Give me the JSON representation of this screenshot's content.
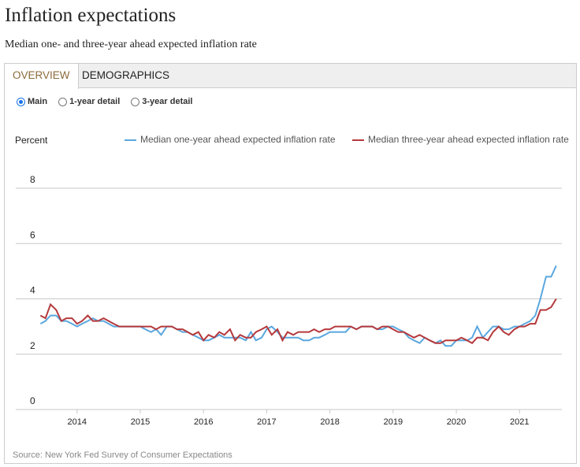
{
  "header": {
    "title": "Inflation expectations",
    "subtitle": "Median one- and three-year ahead expected inflation rate"
  },
  "tabs": [
    "OVERVIEW",
    "DEMOGRAPHICS"
  ],
  "options": [
    "Main",
    "1-year detail",
    "3-year detail"
  ],
  "chart_data": {
    "type": "line",
    "y_label": "Percent",
    "x": [
      2013.42,
      2013.5,
      2013.58,
      2013.67,
      2013.75,
      2013.83,
      2013.92,
      2014.0,
      2014.08,
      2014.17,
      2014.25,
      2014.33,
      2014.42,
      2014.5,
      2014.58,
      2014.67,
      2014.75,
      2014.83,
      2014.92,
      2015.0,
      2015.08,
      2015.17,
      2015.25,
      2015.33,
      2015.42,
      2015.5,
      2015.58,
      2015.67,
      2015.75,
      2015.83,
      2015.92,
      2016.0,
      2016.08,
      2016.17,
      2016.25,
      2016.33,
      2016.42,
      2016.5,
      2016.58,
      2016.67,
      2016.75,
      2016.83,
      2016.92,
      2017.0,
      2017.08,
      2017.17,
      2017.25,
      2017.33,
      2017.42,
      2017.5,
      2017.58,
      2017.67,
      2017.75,
      2017.83,
      2017.92,
      2018.0,
      2018.08,
      2018.17,
      2018.25,
      2018.33,
      2018.42,
      2018.5,
      2018.58,
      2018.67,
      2018.75,
      2018.83,
      2018.92,
      2019.0,
      2019.08,
      2019.17,
      2019.25,
      2019.33,
      2019.42,
      2019.5,
      2019.58,
      2019.67,
      2019.75,
      2019.83,
      2019.92,
      2020.0,
      2020.08,
      2020.17,
      2020.25,
      2020.33,
      2020.42,
      2020.5,
      2020.58,
      2020.67,
      2020.75,
      2020.83,
      2020.92,
      2021.0,
      2021.08,
      2021.17,
      2021.25,
      2021.33,
      2021.42,
      2021.5,
      2021.58
    ],
    "series": [
      {
        "name": "Median one-year ahead expected inflation rate",
        "color": "#5aa7de",
        "values": [
          3.1,
          3.2,
          3.4,
          3.4,
          3.2,
          3.2,
          3.1,
          3.0,
          3.1,
          3.2,
          3.3,
          3.2,
          3.2,
          3.1,
          3.0,
          3.0,
          3.0,
          3.0,
          3.0,
          3.0,
          2.9,
          2.8,
          2.9,
          2.7,
          3.0,
          3.0,
          2.9,
          2.8,
          2.8,
          2.7,
          2.6,
          2.5,
          2.5,
          2.6,
          2.7,
          2.6,
          2.6,
          2.6,
          2.6,
          2.5,
          2.8,
          2.5,
          2.6,
          2.9,
          3.0,
          2.8,
          2.6,
          2.6,
          2.6,
          2.6,
          2.5,
          2.5,
          2.6,
          2.6,
          2.7,
          2.8,
          2.8,
          2.8,
          2.8,
          3.0,
          2.9,
          3.0,
          3.0,
          3.0,
          2.9,
          2.9,
          3.0,
          3.0,
          2.9,
          2.8,
          2.6,
          2.5,
          2.4,
          2.6,
          2.5,
          2.4,
          2.5,
          2.3,
          2.3,
          2.5,
          2.5,
          2.5,
          2.6,
          3.0,
          2.6,
          2.8,
          3.0,
          3.0,
          2.9,
          2.9,
          3.0,
          3.0,
          3.1,
          3.2,
          3.4,
          4.0,
          4.8,
          4.8,
          5.2
        ]
      },
      {
        "name": "Median three-year ahead expected inflation rate",
        "color": "#b5393c",
        "values": [
          3.4,
          3.3,
          3.8,
          3.6,
          3.2,
          3.3,
          3.3,
          3.1,
          3.2,
          3.4,
          3.2,
          3.2,
          3.3,
          3.2,
          3.1,
          3.0,
          3.0,
          3.0,
          3.0,
          3.0,
          3.0,
          3.0,
          2.9,
          3.0,
          3.0,
          3.0,
          2.9,
          2.9,
          2.8,
          2.7,
          2.8,
          2.5,
          2.7,
          2.6,
          2.8,
          2.7,
          2.9,
          2.5,
          2.7,
          2.6,
          2.6,
          2.8,
          2.9,
          3.0,
          2.7,
          2.9,
          2.5,
          2.8,
          2.7,
          2.8,
          2.8,
          2.8,
          2.9,
          2.8,
          2.9,
          2.9,
          3.0,
          3.0,
          3.0,
          3.0,
          2.9,
          3.0,
          3.0,
          3.0,
          2.9,
          3.0,
          3.0,
          2.9,
          2.8,
          2.8,
          2.7,
          2.6,
          2.7,
          2.6,
          2.5,
          2.4,
          2.4,
          2.5,
          2.5,
          2.5,
          2.6,
          2.5,
          2.4,
          2.6,
          2.6,
          2.5,
          2.8,
          3.0,
          2.8,
          2.7,
          2.9,
          3.0,
          3.0,
          3.1,
          3.1,
          3.6,
          3.6,
          3.7,
          4.0
        ]
      }
    ],
    "xlim": [
      2013.03,
      2021.67
    ],
    "xticks": [
      2014,
      2015,
      2016,
      2017,
      2018,
      2019,
      2020,
      2021
    ],
    "ylim": [
      0,
      8
    ],
    "yticks": [
      0,
      2,
      4,
      6,
      8
    ],
    "grid": true
  },
  "source": "Source: New York Fed Survey of Consumer Expectations"
}
